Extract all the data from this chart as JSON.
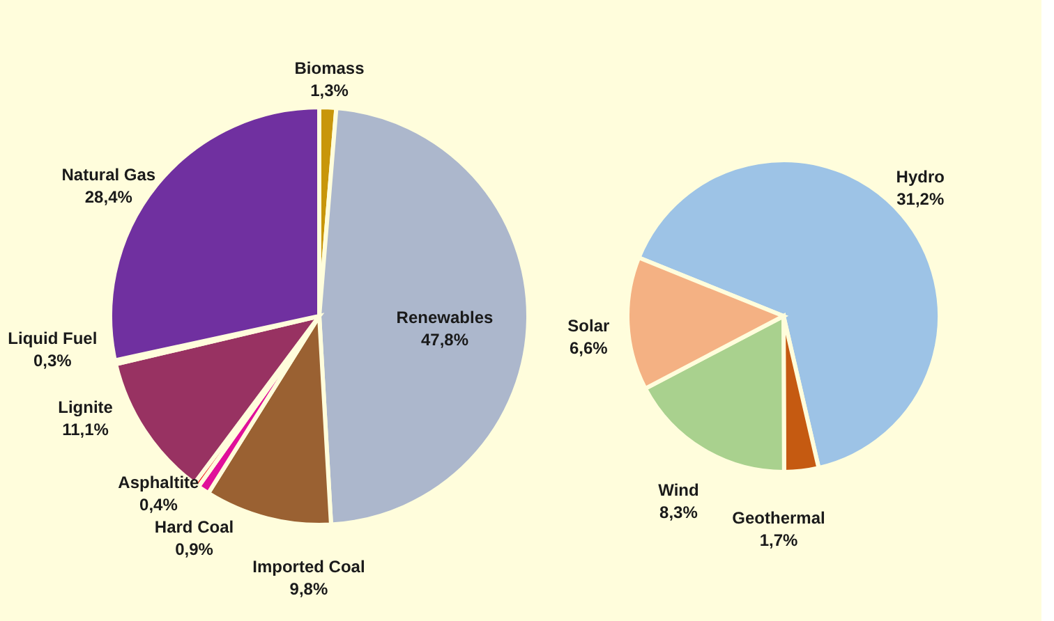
{
  "chart_data": [
    {
      "type": "pie",
      "categories": [
        "Biomass",
        "Renewables",
        "Imported Coal",
        "Hard Coal",
        "Asphaltite",
        "Lignite",
        "Liquid Fuel",
        "Natural Gas"
      ],
      "values": [
        1.3,
        47.8,
        9.8,
        0.9,
        0.4,
        11.1,
        0.3,
        28.4
      ],
      "value_labels": [
        "1,3%",
        "47,8%",
        "9,8%",
        "0,9%",
        "0,4%",
        "11,1%",
        "0,3%",
        "28,4%"
      ],
      "colors": [
        "#c8960a",
        "#acb7cc",
        "#9a6132",
        "#e0109a",
        "#f01818",
        "#983262",
        "#3f6fb3",
        "#7030a0"
      ]
    },
    {
      "type": "pie",
      "categories": [
        "Hydro",
        "Geothermal",
        "Wind",
        "Solar"
      ],
      "values": [
        31.2,
        1.7,
        8.3,
        6.6
      ],
      "value_labels": [
        "31,2%",
        "1,7%",
        "8,3%",
        "6,6%"
      ],
      "colors": [
        "#9dc3e6",
        "#c55a11",
        "#a9d18e",
        "#f4b183"
      ]
    }
  ]
}
